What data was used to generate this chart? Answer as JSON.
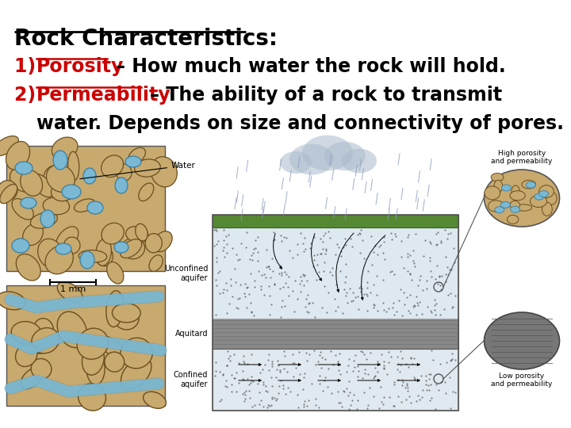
{
  "bg_color": "#ffffff",
  "title_text": "Rock Characteristics:",
  "title_color": "#000000",
  "title_fontsize": 20,
  "line1_number": "1)  ",
  "line1_keyword": "Porosity",
  "line1_rest": " – How much water the rock will hold.",
  "line2_number": "2)  ",
  "line2_keyword": "Permeability",
  "line2_rest": " – The ability of a rock to transmit",
  "line3_indent": "      ",
  "line3_rest": "water. Depends on size and connectivity of pores.",
  "keyword_color": "#cc0000",
  "text_color": "#000000",
  "text_fontsize": 17,
  "title_fontsize_val": 20,
  "figsize": [
    7.2,
    5.4
  ],
  "dpi": 100,
  "grain_color": "#c8a96e",
  "grain_edge": "#6b4e1e",
  "water_color": "#7ab8d4",
  "water_edge": "#3a7fa0",
  "dark_rock_color": "#777777",
  "dark_rock_edge": "#444444"
}
